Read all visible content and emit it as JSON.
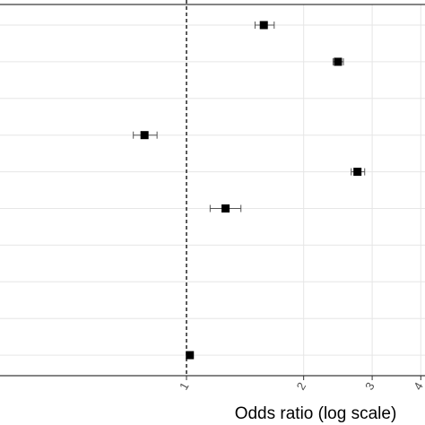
{
  "chart_data": {
    "type": "scatter",
    "xlabel": "Odds ratio (log scale)",
    "x_scale": "log",
    "xlim": [
      0.58,
      4.3
    ],
    "x_ticks": [
      {
        "value": 1,
        "label": "1"
      },
      {
        "value": 2,
        "label": "2"
      },
      {
        "value": 3,
        "label": "3"
      },
      {
        "value": 4,
        "label": "4"
      }
    ],
    "reference_line": {
      "value": 1,
      "style": "dashed"
    },
    "grid": true,
    "n_rows": 10,
    "points": [
      {
        "row": 1,
        "estimate": 1.58,
        "lower": 1.5,
        "upper": 1.68
      },
      {
        "row": 2,
        "estimate": 2.45,
        "lower": 2.38,
        "upper": 2.53
      },
      {
        "row": 3,
        "estimate": null,
        "lower": null,
        "upper": null
      },
      {
        "row": 4,
        "estimate": 0.78,
        "lower": 0.73,
        "upper": 0.84
      },
      {
        "row": 5,
        "estimate": 2.75,
        "lower": 2.65,
        "upper": 2.87
      },
      {
        "row": 6,
        "estimate": 1.26,
        "lower": 1.15,
        "upper": 1.38
      },
      {
        "row": 7,
        "estimate": null,
        "lower": null,
        "upper": null
      },
      {
        "row": 8,
        "estimate": null,
        "lower": null,
        "upper": null
      },
      {
        "row": 9,
        "estimate": null,
        "lower": null,
        "upper": null
      },
      {
        "row": 10,
        "estimate": 1.02,
        "lower": 1.0,
        "upper": 1.04
      }
    ]
  }
}
